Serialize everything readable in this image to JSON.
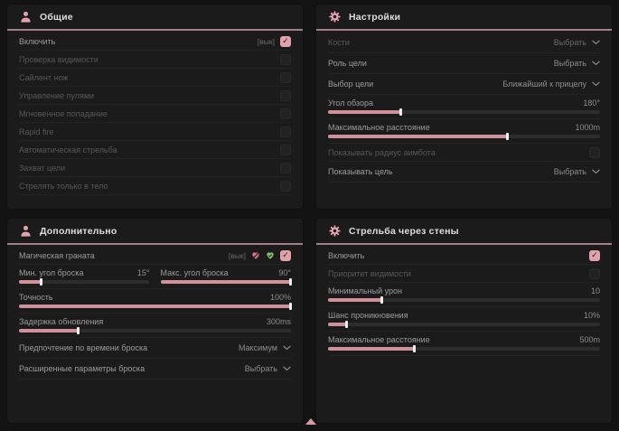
{
  "theme": {
    "accent": "#e2a2ac",
    "slider_fill": "#cf929b",
    "header_line": "#a5808c",
    "panel_bg": "#1b1b1b",
    "page_bg": "#131313",
    "heart_off_color": "#e17287",
    "heart_on_color": "#84c16b"
  },
  "panels": {
    "general": {
      "title": "Общие",
      "icon": "person-icon",
      "rows": [
        {
          "type": "checkbox",
          "label": "Включить",
          "bind": "[вык]",
          "checked": true,
          "dimmed": false
        },
        {
          "type": "checkbox",
          "label": "Проверка видимости",
          "checked": false,
          "dimmed": true
        },
        {
          "type": "checkbox",
          "label": "Сайлент нож",
          "checked": false,
          "dimmed": true
        },
        {
          "type": "checkbox",
          "label": "Управление пулями",
          "checked": false,
          "dimmed": true
        },
        {
          "type": "checkbox",
          "label": "Мгновенное попадание",
          "checked": false,
          "dimmed": true
        },
        {
          "type": "checkbox",
          "label": "Rapid fire",
          "checked": false,
          "dimmed": true
        },
        {
          "type": "checkbox",
          "label": "Автоматическая стрельба",
          "checked": false,
          "dimmed": true
        },
        {
          "type": "checkbox",
          "label": "Захват цели",
          "checked": false,
          "dimmed": true
        },
        {
          "type": "checkbox",
          "label": "Стрелять только в тело",
          "checked": false,
          "dimmed": true
        }
      ]
    },
    "settings": {
      "title": "Настройки",
      "icon": "gear-icon",
      "rows": [
        {
          "type": "dropdown",
          "label": "Кости",
          "value": "Выбрать",
          "dimmed": true
        },
        {
          "type": "dropdown",
          "label": "Роль цели",
          "value": "Выбрать",
          "dimmed": false
        },
        {
          "type": "dropdown",
          "label": "Выбор цели",
          "value": "Ближайший к прицелу",
          "dimmed": false
        },
        {
          "type": "slider",
          "label": "Угол обзора",
          "value": "180°",
          "fill_pct": 27
        },
        {
          "type": "slider",
          "label": "Максимальное расстояние",
          "value": "1000m",
          "fill_pct": 66
        },
        {
          "type": "checkbox",
          "label": "Показывать радиус аимбота",
          "checked": false,
          "dimmed": true
        },
        {
          "type": "dropdown",
          "label": "Показывать цель",
          "value": "Выбрать",
          "dimmed": false
        }
      ]
    },
    "additional": {
      "title": "Дополнительно",
      "icon": "person-icon",
      "rows": [
        {
          "type": "checkbox-icons",
          "label": "Магическая граната",
          "bind": "[вык]",
          "checked": true,
          "dimmed": false,
          "icons": [
            "heart-off-icon",
            "heart-check-icon"
          ]
        },
        {
          "type": "slider-pair",
          "left": {
            "label": "Мин. угол броска",
            "value": "15°",
            "fill_pct": 17
          },
          "right": {
            "label": "Макс. угол броска",
            "value": "90°",
            "fill_pct": 100
          }
        },
        {
          "type": "slider",
          "label": "Точность",
          "value": "100%",
          "fill_pct": 100
        },
        {
          "type": "slider",
          "label": "Задержка обновления",
          "value": "300ms",
          "fill_pct": 22
        },
        {
          "type": "dropdown",
          "label": "Предпочтение по времени броска",
          "value": "Максимум",
          "dimmed": false
        },
        {
          "type": "dropdown",
          "label": "Расширенные параметры броска",
          "value": "Выбрать",
          "dimmed": false
        }
      ]
    },
    "walls": {
      "title": "Стрельба через стены",
      "icon": "gear-icon",
      "rows": [
        {
          "type": "checkbox",
          "label": "Включить",
          "checked": true,
          "dimmed": false
        },
        {
          "type": "checkbox",
          "label": "Приоритет видимости",
          "checked": false,
          "dimmed": true
        },
        {
          "type": "slider",
          "label": "Минимальный урон",
          "value": "10",
          "fill_pct": 20
        },
        {
          "type": "slider",
          "label": "Шанс проникновения",
          "value": "10%",
          "fill_pct": 7
        },
        {
          "type": "slider",
          "label": "Максимальное расстояние",
          "value": "500m",
          "fill_pct": 32
        }
      ]
    }
  }
}
